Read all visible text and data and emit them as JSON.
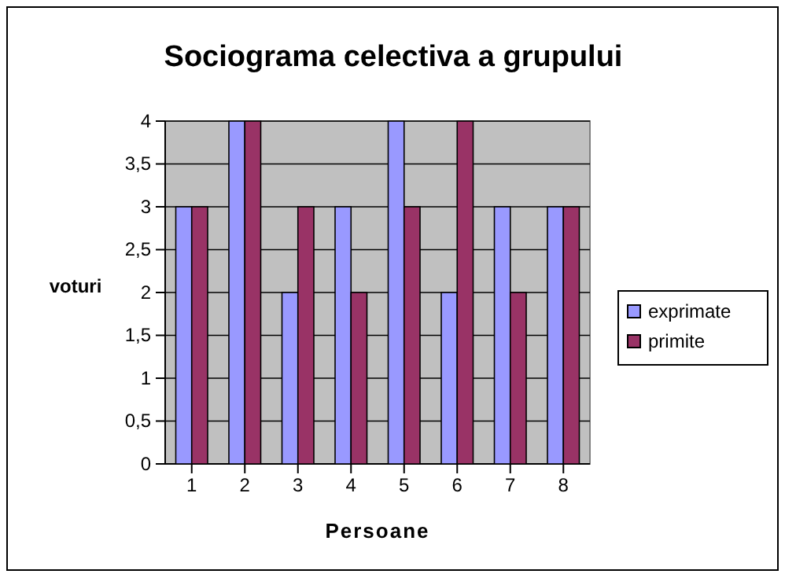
{
  "chart_data": {
    "type": "bar",
    "title": "Sociograma celectiva a grupului",
    "xlabel": "Persoane",
    "ylabel": "voturi",
    "categories": [
      "1",
      "2",
      "3",
      "4",
      "5",
      "6",
      "7",
      "8"
    ],
    "series": [
      {
        "name": "exprimate",
        "color": "#9999ff",
        "values": [
          3,
          4,
          2,
          3,
          4,
          2,
          3,
          3
        ]
      },
      {
        "name": "primite",
        "color": "#993366",
        "values": [
          3,
          4,
          3,
          2,
          3,
          4,
          2,
          3
        ]
      }
    ],
    "ylim": [
      0,
      4
    ],
    "yticks": [
      0,
      {
        "value": 0.5,
        "label": "0,5"
      },
      1,
      {
        "value": 1.5,
        "label": "1,5"
      },
      2,
      {
        "value": 2.5,
        "label": "2,5"
      },
      3,
      {
        "value": 3.5,
        "label": "3,5"
      },
      4
    ],
    "grid": "y",
    "legend": "right"
  }
}
